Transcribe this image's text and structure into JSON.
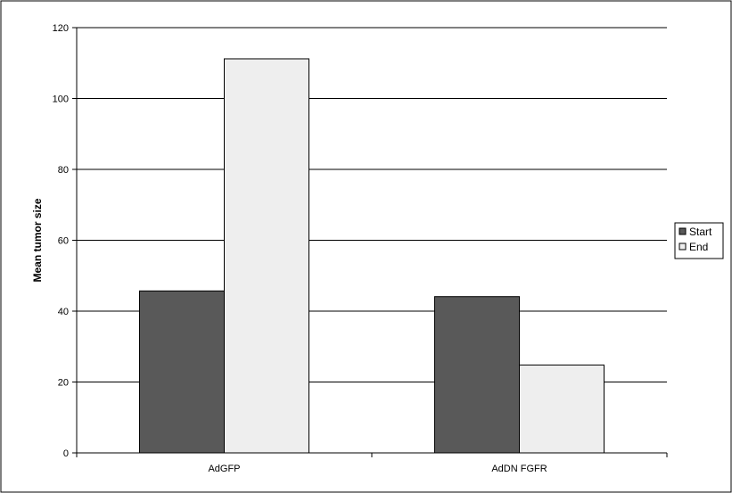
{
  "chart_data": {
    "type": "bar",
    "title": "",
    "xlabel": "",
    "ylabel": "Mean tumor size",
    "categories": [
      "AdGFP",
      "AdDN FGFR"
    ],
    "series": [
      {
        "name": "Start",
        "values": [
          45.7,
          44.1
        ],
        "color": "#595959"
      },
      {
        "name": "End",
        "values": [
          111.2,
          24.8
        ],
        "color": "#eeeeee"
      }
    ],
    "ylim": [
      0,
      120
    ],
    "yticks": [
      0,
      20,
      40,
      60,
      80,
      100,
      120
    ],
    "grid": true,
    "legend": "right"
  }
}
